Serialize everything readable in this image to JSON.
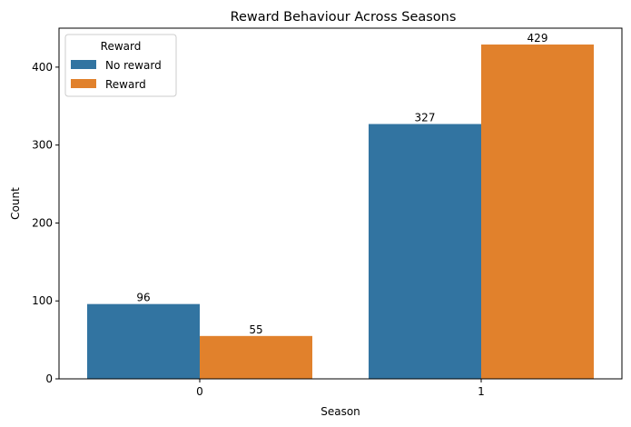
{
  "chart_data": {
    "type": "bar",
    "title": "Reward Behaviour Across Seasons",
    "xlabel": "Season",
    "ylabel": "Count",
    "categories": [
      "0",
      "1"
    ],
    "series": [
      {
        "name": "No reward",
        "values": [
          96,
          327
        ],
        "color": "#3274a1"
      },
      {
        "name": "Reward",
        "values": [
          55,
          429
        ],
        "color": "#e1812c"
      }
    ],
    "data_labels": [
      [
        "96",
        "327"
      ],
      [
        "55",
        "429"
      ]
    ],
    "ylim": [
      0,
      450
    ],
    "yticks": [
      0,
      100,
      200,
      300,
      400
    ],
    "legend": {
      "title": "Reward",
      "position": "top-left"
    },
    "grid": false
  }
}
